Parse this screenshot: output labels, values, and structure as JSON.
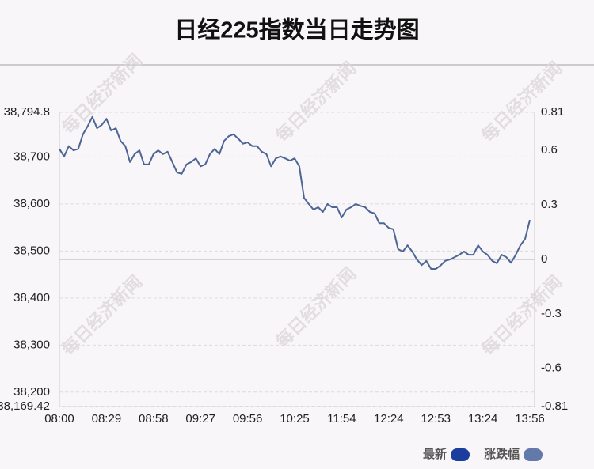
{
  "chart_data": {
    "type": "line",
    "title": "日经225指数当日走势图",
    "watermark": "每日经济新闻",
    "categories": [
      "08:00",
      null,
      null,
      null,
      null,
      null,
      null,
      null,
      null,
      null,
      "08:29",
      null,
      null,
      null,
      null,
      null,
      null,
      null,
      null,
      null,
      "08:58",
      null,
      null,
      null,
      null,
      null,
      null,
      null,
      null,
      null,
      "09:27",
      null,
      null,
      null,
      null,
      null,
      null,
      null,
      null,
      null,
      "09:56",
      null,
      null,
      null,
      null,
      null,
      null,
      null,
      null,
      null,
      "10:25",
      null,
      null,
      null,
      null,
      null,
      null,
      null,
      null,
      null,
      "11:54",
      null,
      null,
      null,
      null,
      null,
      null,
      null,
      null,
      null,
      "12:24",
      null,
      null,
      null,
      null,
      null,
      null,
      null,
      null,
      null,
      "12:53",
      null,
      null,
      null,
      null,
      null,
      null,
      null,
      null,
      null,
      "13:24",
      null,
      null,
      null,
      null,
      null,
      null,
      null,
      null,
      null,
      "13:56"
    ],
    "series": [
      {
        "name": "最新",
        "color": "#4c6596",
        "values": [
          38717,
          38701,
          38723,
          38714,
          38717,
          38748,
          38765,
          38785,
          38761,
          38768,
          38781,
          38756,
          38761,
          38734,
          38723,
          38689,
          38706,
          38714,
          38684,
          38684,
          38706,
          38714,
          38706,
          38711,
          38689,
          38667,
          38664,
          38684,
          38689,
          38697,
          38680,
          38684,
          38706,
          38717,
          38706,
          38734,
          38744,
          38748,
          38739,
          38728,
          38731,
          38723,
          38723,
          38711,
          38706,
          38680,
          38697,
          38701,
          38697,
          38692,
          38697,
          38680,
          38613,
          38600,
          38588,
          38593,
          38583,
          38600,
          38593,
          38593,
          38571,
          38588,
          38593,
          38600,
          38596,
          38593,
          38583,
          38580,
          38559,
          38559,
          38549,
          38546,
          38504,
          38499,
          38512,
          38499,
          38482,
          38470,
          38479,
          38462,
          38462,
          38469,
          38479,
          38482,
          38487,
          38492,
          38499,
          38492,
          38492,
          38512,
          38499,
          38492,
          38479,
          38474,
          38492,
          38487,
          38475,
          38492,
          38512,
          38526,
          38566
        ]
      }
    ],
    "legend": [
      {
        "name": "最新",
        "color": "#1a3d9e"
      },
      {
        "name": "涨跌幅",
        "color": "#6379aa"
      }
    ],
    "ylim": [
      38169.42,
      38794.8
    ],
    "yticks": [
      {
        "value": 38794.8,
        "label": "38,794.8"
      },
      {
        "value": 38700,
        "label": "38,700"
      },
      {
        "value": 38600,
        "label": "38,600"
      },
      {
        "value": 38500,
        "label": "38,500"
      },
      {
        "value": 38400,
        "label": "38,400"
      },
      {
        "value": 38300,
        "label": "38,300"
      },
      {
        "value": 38200,
        "label": "38,200"
      },
      {
        "value": 38169.42,
        "label": "38,169.42"
      }
    ],
    "y2lim": [
      -0.81,
      0.81
    ],
    "y2ticks": [
      0.81,
      0.6,
      0.3,
      0,
      -0.3,
      -0.6,
      -0.81
    ],
    "grid": true
  }
}
